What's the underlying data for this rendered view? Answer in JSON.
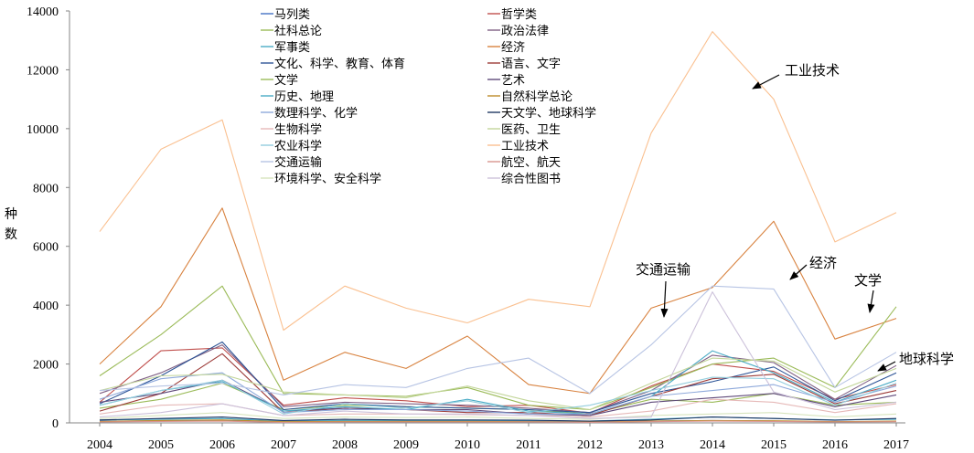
{
  "chart_data": {
    "type": "line",
    "title": "",
    "xlabel": "",
    "ylabel": "种数",
    "x": [
      "2004",
      "2005",
      "2006",
      "2007",
      "2008",
      "2009",
      "2010",
      "2011",
      "2012",
      "2013",
      "2014",
      "2015",
      "2016",
      "2017"
    ],
    "ylim": [
      0,
      14000
    ],
    "yticks": [
      0,
      2000,
      4000,
      6000,
      8000,
      10000,
      12000,
      14000
    ],
    "grid": false,
    "legend_position": "top-center",
    "series": [
      {
        "name": "马列类",
        "color": "#4472C4",
        "values": [
          60,
          70,
          80,
          40,
          40,
          40,
          50,
          50,
          40,
          60,
          80,
          60,
          40,
          50
        ]
      },
      {
        "name": "哲学类",
        "color": "#C0504D",
        "values": [
          700,
          2450,
          2550,
          600,
          850,
          750,
          550,
          600,
          330,
          1250,
          2000,
          1750,
          800,
          1300
        ]
      },
      {
        "name": "社科总论",
        "color": "#9BBB59",
        "values": [
          500,
          800,
          1350,
          450,
          600,
          550,
          500,
          450,
          300,
          800,
          700,
          1000,
          600,
          700
        ]
      },
      {
        "name": "政治法律",
        "color": "#7F6084",
        "values": [
          1000,
          1700,
          2650,
          550,
          700,
          650,
          600,
          500,
          350,
          1100,
          2300,
          2050,
          800,
          1950
        ]
      },
      {
        "name": "军事类",
        "color": "#4BACC6",
        "values": [
          100,
          120,
          150,
          60,
          80,
          80,
          80,
          80,
          60,
          120,
          200,
          150,
          100,
          120
        ]
      },
      {
        "name": "经济",
        "color": "#D8823F",
        "values": [
          2000,
          3950,
          7300,
          1450,
          2400,
          1850,
          2950,
          1300,
          1000,
          3900,
          4600,
          6850,
          2850,
          3550
        ]
      },
      {
        "name": "文化、科学、教育、体育",
        "color": "#2E5597",
        "values": [
          650,
          1600,
          2750,
          450,
          650,
          550,
          500,
          450,
          350,
          1000,
          1400,
          1900,
          750,
          1700
        ]
      },
      {
        "name": "语言、文字",
        "color": "#9C3A37",
        "values": [
          400,
          1000,
          2350,
          350,
          500,
          450,
          350,
          350,
          250,
          900,
          1500,
          1650,
          650,
          1100
        ]
      },
      {
        "name": "文学",
        "color": "#9BBB59",
        "values": [
          1600,
          3000,
          4650,
          1000,
          950,
          900,
          1200,
          600,
          450,
          1200,
          2000,
          2200,
          1200,
          3950
        ]
      },
      {
        "name": "艺术",
        "color": "#5F497A",
        "values": [
          700,
          1000,
          1450,
          400,
          500,
          450,
          450,
          300,
          250,
          700,
          850,
          1000,
          550,
          950
        ]
      },
      {
        "name": "历史、地理",
        "color": "#4BACC6",
        "values": [
          600,
          1100,
          1400,
          400,
          550,
          450,
          800,
          400,
          300,
          900,
          2450,
          1700,
          700,
          1450
        ]
      },
      {
        "name": "自然科学总论",
        "color": "#BD8C29",
        "values": [
          50,
          80,
          100,
          40,
          50,
          50,
          50,
          40,
          30,
          60,
          80,
          70,
          40,
          60
        ]
      },
      {
        "name": "数理科学、化学",
        "color": "#8EA9DB",
        "values": [
          800,
          1500,
          1700,
          350,
          450,
          450,
          400,
          300,
          300,
          900,
          1100,
          1300,
          700,
          1250
        ]
      },
      {
        "name": "天文学、地球科学",
        "color": "#203864",
        "values": [
          100,
          150,
          200,
          80,
          120,
          100,
          100,
          90,
          60,
          100,
          200,
          150,
          90,
          150
        ]
      },
      {
        "name": "生物科学",
        "color": "#E6B9B8",
        "values": [
          300,
          600,
          650,
          250,
          300,
          300,
          280,
          250,
          200,
          400,
          800,
          700,
          350,
          650
        ]
      },
      {
        "name": "医药、卫生",
        "color": "#C3D69B",
        "values": [
          1100,
          1600,
          1650,
          1050,
          950,
          850,
          1250,
          750,
          450,
          1350,
          2200,
          2100,
          1050,
          1850
        ]
      },
      {
        "name": "农业科学",
        "color": "#93CDDD",
        "values": [
          600,
          1100,
          1450,
          300,
          650,
          500,
          750,
          350,
          600,
          1100,
          1550,
          1500,
          600,
          1350
        ]
      },
      {
        "name": "工业技术",
        "color": "#FAC090",
        "values": [
          6500,
          9300,
          10300,
          3150,
          4650,
          3900,
          3400,
          4200,
          3950,
          9850,
          13300,
          11000,
          6150,
          7150
        ]
      },
      {
        "name": "交通运输",
        "color": "#B7C4E4",
        "values": [
          1100,
          1250,
          1350,
          950,
          1300,
          1200,
          1850,
          2200,
          1000,
          2650,
          4650,
          4550,
          1200,
          2400
        ]
      },
      {
        "name": "航空、航天",
        "color": "#D9958F",
        "values": [
          30,
          50,
          60,
          20,
          30,
          30,
          30,
          30,
          20,
          40,
          60,
          50,
          30,
          40
        ]
      },
      {
        "name": "环境科学、安全科学",
        "color": "#D7E4BD",
        "values": [
          150,
          250,
          350,
          150,
          200,
          180,
          200,
          150,
          120,
          250,
          300,
          350,
          200,
          300
        ]
      },
      {
        "name": "综合性图书",
        "color": "#CCC1DA",
        "values": [
          200,
          350,
          650,
          250,
          400,
          300,
          300,
          250,
          150,
          200,
          4450,
          1050,
          450,
          700
        ]
      }
    ],
    "annotations": [
      "工业技术",
      "经济",
      "交通运输",
      "文学",
      "地球科学"
    ]
  }
}
